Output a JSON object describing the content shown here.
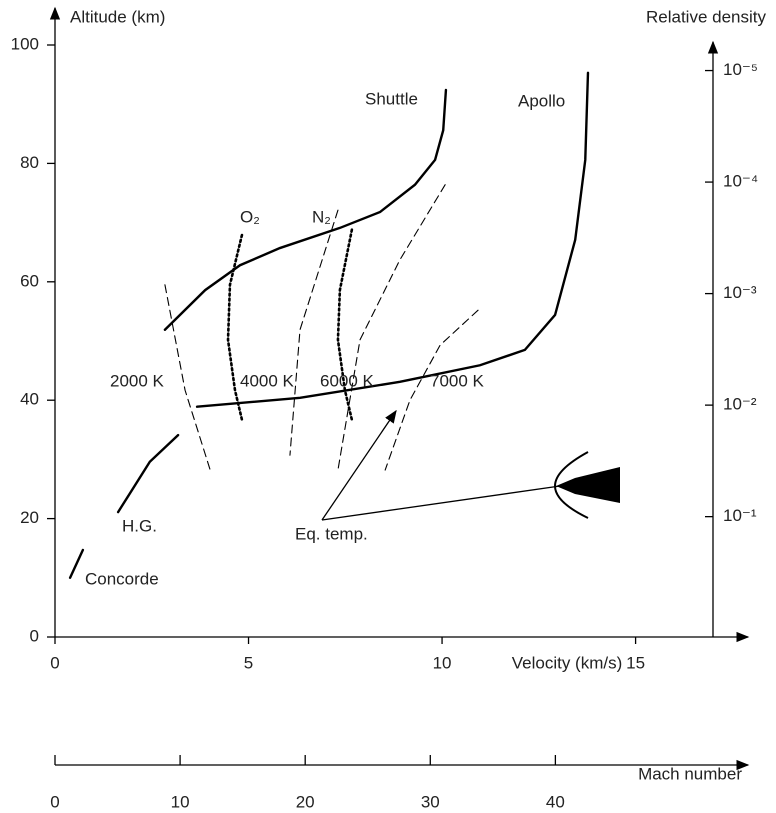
{
  "chart_data": {
    "type": "line",
    "y_label": "Altitude (km)",
    "x_label": "Velocity (km/s)",
    "y2_label": "Relative density",
    "x2_label": "Mach number",
    "xlim": [
      0,
      17
    ],
    "xticks": [
      0,
      5,
      10,
      15
    ],
    "ylim": [
      0,
      100
    ],
    "yticks": [
      0,
      20,
      40,
      60,
      80,
      100
    ],
    "y2lim": [
      1.2,
      5.9e-06
    ],
    "y2scale": "log",
    "y2ticks": [
      {
        "value": 0.1,
        "label": "10⁻¹"
      },
      {
        "value": 0.01,
        "label": "10⁻²"
      },
      {
        "value": 0.001,
        "label": "10⁻³"
      },
      {
        "value": 0.0001,
        "label": "10⁻⁴"
      },
      {
        "value": 1e-05,
        "label": "10⁻⁵"
      }
    ],
    "x2lim": [
      0,
      52.6
    ],
    "x2ticks": [
      0,
      10,
      20,
      30,
      40
    ],
    "annotation": "Eq. temp.",
    "series": [
      {
        "name": "Shuttle",
        "color": "#000000",
        "style": "solid",
        "x": [
          2.84,
          3.88,
          4.78,
          5.81,
          7.36,
          8.4,
          9.3,
          9.82,
          10.03,
          10.1
        ],
        "values": [
          51.9,
          58.6,
          62.8,
          65.7,
          69.1,
          71.8,
          76.4,
          80.6,
          85.6,
          92.4
        ]
      },
      {
        "name": "Apollo",
        "color": "#000000",
        "style": "solid",
        "x": [
          3.67,
          6.33,
          8.91,
          10.98,
          12.14,
          12.92,
          13.44,
          13.7,
          13.77
        ],
        "values": [
          38.9,
          40.4,
          43.1,
          45.9,
          48.5,
          54.4,
          67.1,
          80.6,
          95.3
        ]
      },
      {
        "name": "H.G.",
        "color": "#000000",
        "style": "solid",
        "x": [
          1.63,
          2.45,
          3.18
        ],
        "values": [
          21.1,
          29.6,
          34.1
        ]
      },
      {
        "name": "Concorde",
        "color": "#000000",
        "style": "solid",
        "x": [
          0.39,
          0.72
        ],
        "values": [
          10.0,
          14.7
        ]
      },
      {
        "name": "O₂",
        "color": "#000000",
        "style": "dotted",
        "x": [
          4.83,
          4.52,
          4.47,
          4.65,
          4.83
        ],
        "values": [
          67.9,
          59.5,
          50.2,
          41.7,
          36.7
        ]
      },
      {
        "name": "N₂",
        "color": "#000000",
        "style": "dotted",
        "x": [
          7.67,
          7.36,
          7.31,
          7.49,
          7.67
        ],
        "values": [
          68.8,
          58.6,
          50.2,
          41.7,
          36.7
        ]
      },
      {
        "name": "2000 K",
        "color": "#000000",
        "style": "dashed",
        "x": [
          2.84,
          3.36,
          4.01
        ],
        "values": [
          59.5,
          41.7,
          28.2
        ]
      },
      {
        "name": "4000 K",
        "color": "#000000",
        "style": "dashed",
        "x": [
          7.31,
          6.33,
          6.07
        ],
        "values": [
          72.1,
          51.9,
          30.7
        ]
      },
      {
        "name": "6000 K",
        "color": "#000000",
        "style": "dashed",
        "x": [
          10.08,
          8.91,
          7.88,
          7.31
        ],
        "values": [
          76.4,
          63.7,
          50.2,
          28.2
        ]
      },
      {
        "name": "7000 K",
        "color": "#000000",
        "style": "dashed",
        "x": [
          10.93,
          9.95,
          9.17,
          8.53
        ],
        "values": [
          55.2,
          49.3,
          40.0,
          28.2
        ]
      }
    ]
  }
}
